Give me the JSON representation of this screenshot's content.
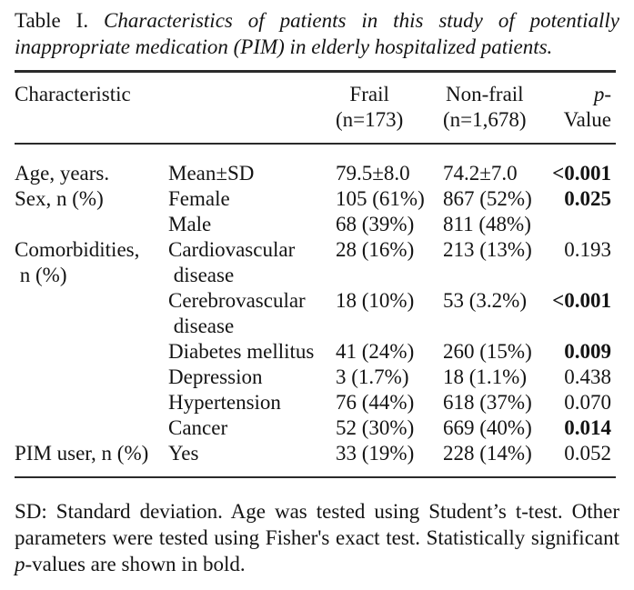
{
  "title": {
    "label": "Table I.",
    "line1_italic": "Characteristics of patients in this study of potentially",
    "line2_italic": "inappropriate medication (PIM) in elderly hospitalized patients."
  },
  "header": {
    "characteristic": "Characteristic",
    "frail_line1": "Frail",
    "frail_line2": "(n=173)",
    "nonfrail_line1": "Non-frail",
    "nonfrail_line2": "(n=1,678)",
    "pvalue_italic": "p",
    "pvalue_rest": "-Value"
  },
  "table": {
    "rows": [
      {
        "cells": [
          "Age, years.",
          "Mean±SD",
          "79.5±8.0",
          "74.2±7.0",
          "<0.001"
        ],
        "p_bold": true
      },
      {
        "cells": [
          "Sex, n (%)",
          "Female",
          "105 (61%)",
          "867 (52%)",
          "0.025"
        ],
        "p_bold": true
      },
      {
        "cells": [
          "",
          "Male",
          "68 (39%)",
          "811 (48%)",
          ""
        ],
        "p_bold": false
      },
      {
        "cells": [
          "Comorbidities,",
          "Cardiovascular",
          "28 (16%)",
          "213 (13%)",
          "0.193"
        ],
        "p_bold": false
      },
      {
        "cells": [
          " n (%)",
          " disease",
          "",
          "",
          ""
        ],
        "p_bold": false
      },
      {
        "cells": [
          "",
          "Cerebrovascular",
          "18 (10%)",
          "53 (3.2%)",
          "<0.001"
        ],
        "p_bold": true
      },
      {
        "cells": [
          "",
          " disease",
          "",
          "",
          ""
        ],
        "p_bold": false
      },
      {
        "cells": [
          "",
          "Diabetes mellitus",
          "41 (24%)",
          "260 (15%)",
          "0.009"
        ],
        "p_bold": true
      },
      {
        "cells": [
          "",
          "Depression",
          "3 (1.7%)",
          "18 (1.1%)",
          "0.438"
        ],
        "p_bold": false
      },
      {
        "cells": [
          "",
          "Hypertension",
          "76 (44%)",
          "618 (37%)",
          "0.070"
        ],
        "p_bold": false
      },
      {
        "cells": [
          "",
          "Cancer",
          "52 (30%)",
          "669 (40%)",
          "0.014"
        ],
        "p_bold": true
      },
      {
        "cells": [
          "PIM user, n (%)",
          "Yes",
          "33 (19%)",
          "228 (14%)",
          "0.052"
        ],
        "p_bold": false
      }
    ]
  },
  "footnote": {
    "line1": "SD: Standard deviation. Age was tested using Student’s t-test. Other",
    "line2": "parameters were tested using Fisher's exact test. Statistically significant",
    "line3_italic": "p",
    "line3_rest": "-values are shown in bold."
  },
  "colors": {
    "background": "#ffffff",
    "text": "#141414",
    "rule": "#2a2a2a"
  }
}
